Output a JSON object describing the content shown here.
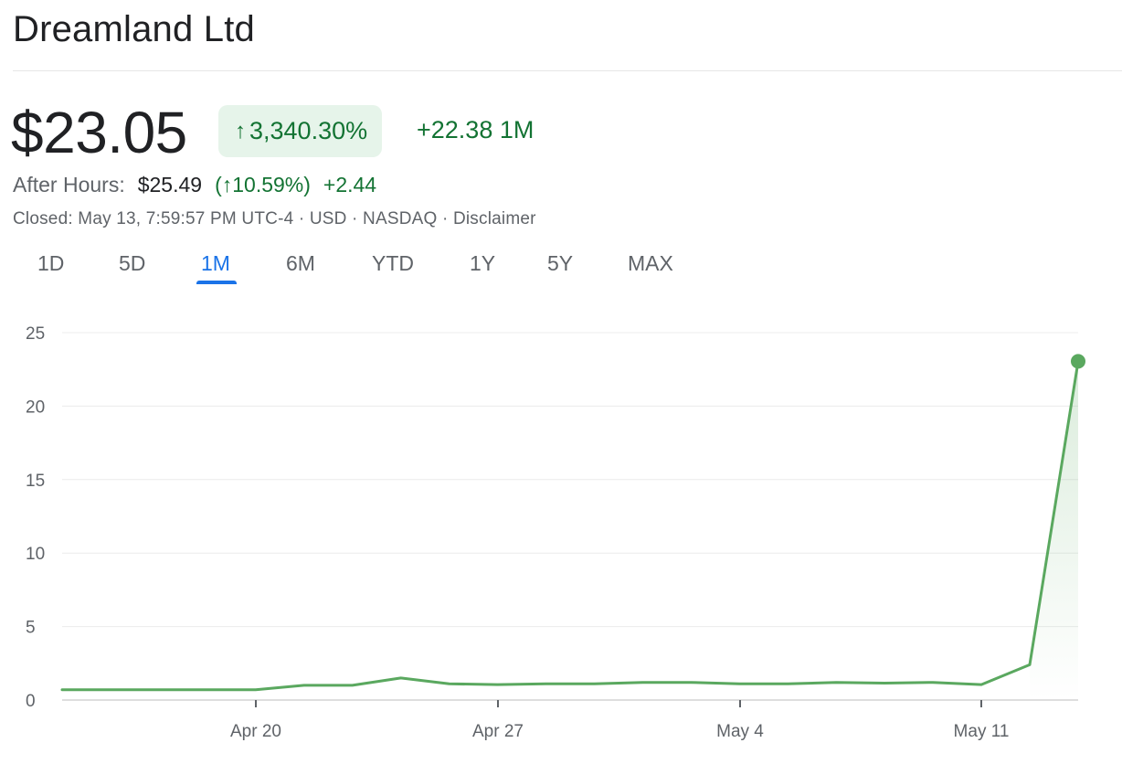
{
  "header": {
    "company": "Dreamland Ltd",
    "price": "$23.05",
    "pct_change": "3,340.30%",
    "abs_change": "+22.38 1M",
    "after_hours": {
      "label": "After Hours:",
      "price": "$25.49",
      "pct_change": "(↑10.59%)",
      "abs_change": "+2.44"
    },
    "meta": "Closed: May 13, 7:59:57 PM UTC-4 · USD · NASDAQ · Disclaimer"
  },
  "tabs": [
    {
      "label": "1D"
    },
    {
      "label": "5D"
    },
    {
      "label": "1M",
      "active": true
    },
    {
      "label": "6M"
    },
    {
      "label": "YTD"
    },
    {
      "label": "1Y"
    },
    {
      "label": "5Y"
    },
    {
      "label": "MAX"
    }
  ],
  "colors": {
    "line": "#5aa85f",
    "positive": "#137333",
    "badge_bg": "#e6f4ea",
    "active_tab": "#1a73e8"
  },
  "chart_data": {
    "type": "area",
    "x_ticks": [
      "Apr 20",
      "Apr 27",
      "May 4",
      "May 11"
    ],
    "y_ticks": [
      "25",
      "20",
      "15",
      "10",
      "5",
      "0"
    ],
    "ylim": [
      0,
      25
    ],
    "grid": true,
    "series": [
      {
        "values": [
          0.7,
          0.7,
          0.7,
          0.7,
          0.7,
          1.0,
          1.0,
          1.5,
          1.1,
          1.05,
          1.1,
          1.1,
          1.2,
          1.2,
          1.1,
          1.1,
          1.2,
          1.15,
          1.2,
          1.05,
          2.4,
          23.05
        ]
      }
    ]
  }
}
